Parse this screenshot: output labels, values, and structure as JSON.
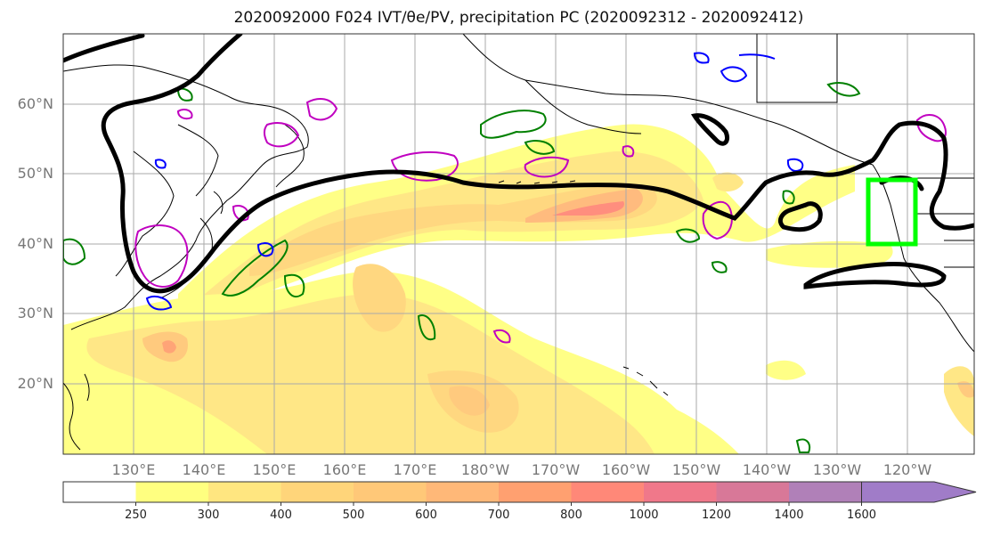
{
  "title": "2020092000 F024 IVT/θe/PV, precipitation PC (2020092312 - 2020092412)",
  "lat_labels": [
    "60°N",
    "50°N",
    "40°N",
    "30°N",
    "20°N"
  ],
  "lon_labels": [
    "130°E",
    "140°E",
    "150°E",
    "160°E",
    "170°E",
    "180°W",
    "170°W",
    "160°W",
    "150°W",
    "140°W",
    "130°W",
    "120°W"
  ],
  "colorbar": {
    "levels": [
      "250",
      "300",
      "400",
      "500",
      "600",
      "700",
      "800",
      "1000",
      "1200",
      "1400",
      "1600"
    ],
    "colors": [
      "#ffffff",
      "#ffff80",
      "#ffe680",
      "#ffd57a",
      "#ffc878",
      "#ffb878",
      "#ffa070",
      "#ff8878",
      "#f0788a",
      "#d87898",
      "#b080b8",
      "#a07cc8"
    ]
  },
  "colors": {
    "ivt_contour": "#000000",
    "theta_e_contour": "#008000",
    "pv_contour": "#0000ff",
    "pv_contour_2": "#c000c0",
    "target_box": "#00ff00",
    "coastline": "#000000"
  }
}
